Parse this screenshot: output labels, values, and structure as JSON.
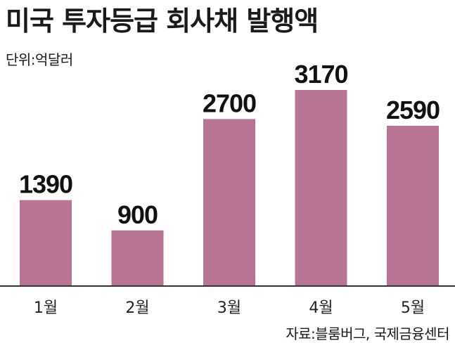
{
  "title": "미국 투자등급 회사채 발행액",
  "unit_label": "단위:억달러",
  "source": "자료:블룸버그, 국제금융센터",
  "colors": {
    "bar": "#b87495",
    "axis": "#333333"
  },
  "chart_data": {
    "type": "bar",
    "title": "미국 투자등급 회사채 발행액",
    "xlabel": "",
    "ylabel": "",
    "unit": "억달러",
    "categories": [
      "1월",
      "2월",
      "3월",
      "4월",
      "5월"
    ],
    "values": [
      1390,
      900,
      2700,
      3170,
      2590
    ],
    "ylim": [
      0,
      3170
    ],
    "grid": false,
    "legend": "none",
    "data_labels": true
  }
}
